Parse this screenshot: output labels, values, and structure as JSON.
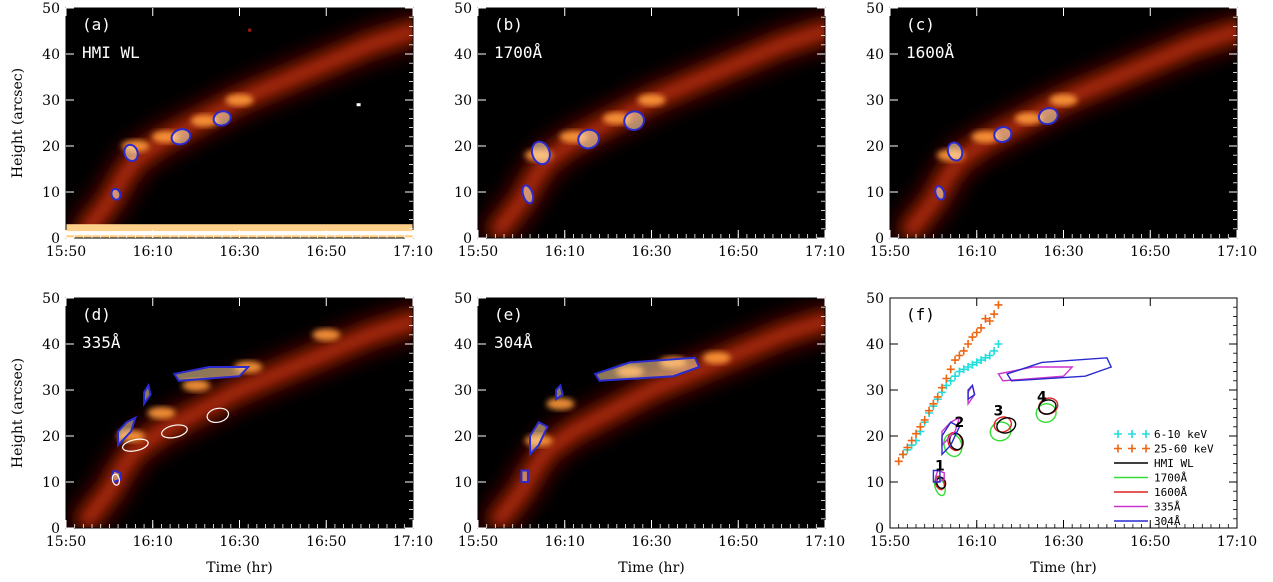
{
  "chart_data": {
    "type": "heatmap",
    "xlabel": "Time (hr)",
    "ylabel": "Height (arcsec)",
    "xticks": [
      "15:50",
      "16:10",
      "16:30",
      "16:50",
      "17:10"
    ],
    "yticks": [
      "0",
      "10",
      "20",
      "30",
      "40",
      "50"
    ],
    "xlim_min": [
      950,
      1030
    ],
    "ylim": [
      0,
      50
    ],
    "colors": {
      "hmi": "#000000",
      "a1700": "#33dd33",
      "a1600": "#dd2222",
      "a335": "#cc33cc",
      "a304": "#2a2ad0",
      "kev_low": "#22dddd",
      "kev_high": "#ee6611"
    },
    "panels": [
      {
        "tag": "(a)",
        "label": "HMI WL",
        "kind": "image",
        "contour": "#2a2ad0"
      },
      {
        "tag": "(b)",
        "label": "1700Å",
        "kind": "image",
        "contour": "#2a2ad0"
      },
      {
        "tag": "(c)",
        "label": "1600Å",
        "kind": "image",
        "contour": "#2a2ad0"
      },
      {
        "tag": "(d)",
        "label": "335Å",
        "kind": "image",
        "contour": "#2a2ad0"
      },
      {
        "tag": "(e)",
        "label": "304Å",
        "kind": "image",
        "contour": "#2a2ad0"
      },
      {
        "tag": "(f)",
        "label": "",
        "kind": "overlay"
      }
    ],
    "series": [
      {
        "name": "6-10 keV",
        "color": "#22dddd",
        "points": [
          [
            953,
            16
          ],
          [
            954,
            17
          ],
          [
            955,
            18
          ],
          [
            956,
            19
          ],
          [
            957,
            21
          ],
          [
            958,
            23
          ],
          [
            959,
            25
          ],
          [
            960,
            26.5
          ],
          [
            961,
            28
          ],
          [
            962,
            29.5
          ],
          [
            963,
            31
          ],
          [
            964,
            32
          ],
          [
            965,
            33
          ],
          [
            966,
            34
          ],
          [
            967,
            34.5
          ],
          [
            968,
            35
          ],
          [
            969,
            35.5
          ],
          [
            970,
            36
          ],
          [
            971,
            36.5
          ],
          [
            972,
            37
          ],
          [
            973,
            37.5
          ],
          [
            974,
            38.5
          ],
          [
            975,
            40
          ]
        ]
      },
      {
        "name": "25-60 keV",
        "color": "#ee6611",
        "points": [
          [
            952,
            14.5
          ],
          [
            953,
            16
          ],
          [
            954,
            17.5
          ],
          [
            955,
            19
          ],
          [
            956,
            20.5
          ],
          [
            957,
            22
          ],
          [
            958,
            23.5
          ],
          [
            959,
            25.5
          ],
          [
            960,
            27
          ],
          [
            961,
            28.5
          ],
          [
            962,
            30.5
          ],
          [
            963,
            32.5
          ],
          [
            964,
            34.5
          ],
          [
            965,
            36.5
          ],
          [
            966,
            37.5
          ],
          [
            967,
            38.5
          ],
          [
            968,
            40
          ],
          [
            969,
            41.5
          ],
          [
            970,
            42.5
          ],
          [
            971,
            43.5
          ],
          [
            972,
            45.5
          ],
          [
            973,
            45
          ],
          [
            974,
            46.5
          ],
          [
            975,
            48.5
          ]
        ]
      }
    ],
    "legend": [
      "6-10 keV",
      "25-60 keV",
      "HMI WL",
      "1700Å",
      "1600Å",
      "335Å",
      "304Å"
    ],
    "annotations": [
      "1",
      "2",
      "3",
      "4"
    ],
    "contours": {
      "hmi_blobs": [
        [
          961.5,
          9.5,
          1,
          1.2
        ],
        [
          965,
          18.5,
          1.5,
          1.8
        ],
        [
          976.5,
          22,
          2.2,
          1.6
        ],
        [
          986,
          26,
          2,
          1.5
        ]
      ],
      "a1700_blobs": [
        [
          961.5,
          9.5,
          1.1,
          2
        ],
        [
          964.5,
          18.5,
          2,
          2.5
        ],
        [
          975.5,
          21.5,
          2.4,
          2
        ],
        [
          986,
          25.5,
          2.3,
          2
        ]
      ],
      "a1600_blobs": [
        [
          961.5,
          9.8,
          1,
          1.5
        ],
        [
          965,
          18.8,
          1.6,
          2
        ],
        [
          976,
          22.5,
          2,
          1.6
        ],
        [
          986.5,
          26.5,
          2.2,
          1.7
        ]
      ],
      "a335": [
        [
          [
            961,
            10
          ],
          [
            962.5,
            10.5
          ],
          [
            962.5,
            12
          ],
          [
            961,
            12.5
          ],
          [
            960.5,
            11
          ]
        ],
        [
          [
            962,
            18
          ],
          [
            965,
            21
          ],
          [
            966,
            24
          ],
          [
            964,
            23
          ],
          [
            962,
            21
          ]
        ],
        [
          [
            968,
            27
          ],
          [
            969.5,
            29
          ],
          [
            969,
            31
          ],
          [
            968,
            29.5
          ]
        ],
        [
          [
            976,
            32
          ],
          [
            990,
            33
          ],
          [
            992,
            35
          ],
          [
            983,
            35
          ],
          [
            975,
            33.5
          ]
        ]
      ],
      "a304": [
        [
          [
            960,
            10
          ],
          [
            961.5,
            10
          ],
          [
            961.5,
            12.5
          ],
          [
            960,
            12.5
          ]
        ],
        [
          [
            962,
            16
          ],
          [
            964,
            18
          ],
          [
            966,
            22
          ],
          [
            964,
            23
          ],
          [
            962,
            20
          ]
        ],
        [
          [
            968,
            28
          ],
          [
            969.5,
            29
          ],
          [
            969,
            31
          ],
          [
            968,
            30
          ]
        ],
        [
          [
            978,
            32
          ],
          [
            995,
            33
          ],
          [
            1001,
            35
          ],
          [
            1000,
            37
          ],
          [
            985,
            36
          ],
          [
            977,
            33.5
          ]
        ]
      ]
    }
  }
}
